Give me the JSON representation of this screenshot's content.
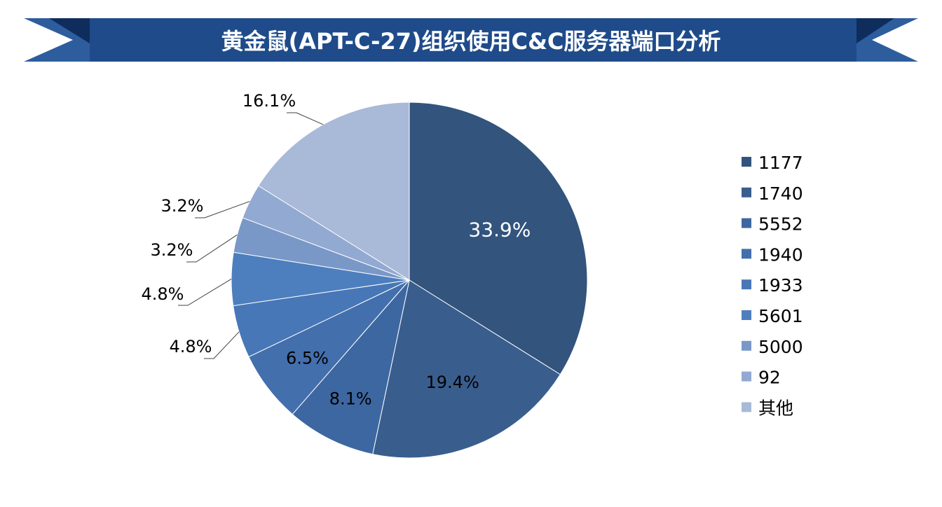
{
  "header": {
    "title": "黄金鼠(APT-C-27)组织使用C&C服务器端口分析",
    "banner_color": "#1f4b8a",
    "ribbon_color": "#2e5d9e",
    "fold_color": "#0f2d5c"
  },
  "chart_data": {
    "type": "pie",
    "title": "黄金鼠(APT-C-27)组织使用C&C服务器端口分析",
    "start_angle_deg": 0,
    "direction": "clockwise",
    "legend_position": "right",
    "slices": [
      {
        "label": "1177",
        "value": 33.9,
        "display": "33.9%",
        "color": "#32547d"
      },
      {
        "label": "1740",
        "value": 19.4,
        "display": "19.4%",
        "color": "#395e8e"
      },
      {
        "label": "5552",
        "value": 8.1,
        "display": "8.1%",
        "color": "#3d67a1"
      },
      {
        "label": "1940",
        "value": 6.5,
        "display": "6.5%",
        "color": "#436fad"
      },
      {
        "label": "1933",
        "value": 4.8,
        "display": "4.8%",
        "color": "#4777b7"
      },
      {
        "label": "5601",
        "value": 4.8,
        "display": "4.8%",
        "color": "#4d7fbe"
      },
      {
        "label": "5000",
        "value": 3.2,
        "display": "3.2%",
        "color": "#7a98c7"
      },
      {
        "label": "92",
        "value": 3.2,
        "display": "3.2%",
        "color": "#92a9d2"
      },
      {
        "label": "其他",
        "value": 16.1,
        "display": "16.1%",
        "color": "#a9b9d8"
      }
    ]
  }
}
